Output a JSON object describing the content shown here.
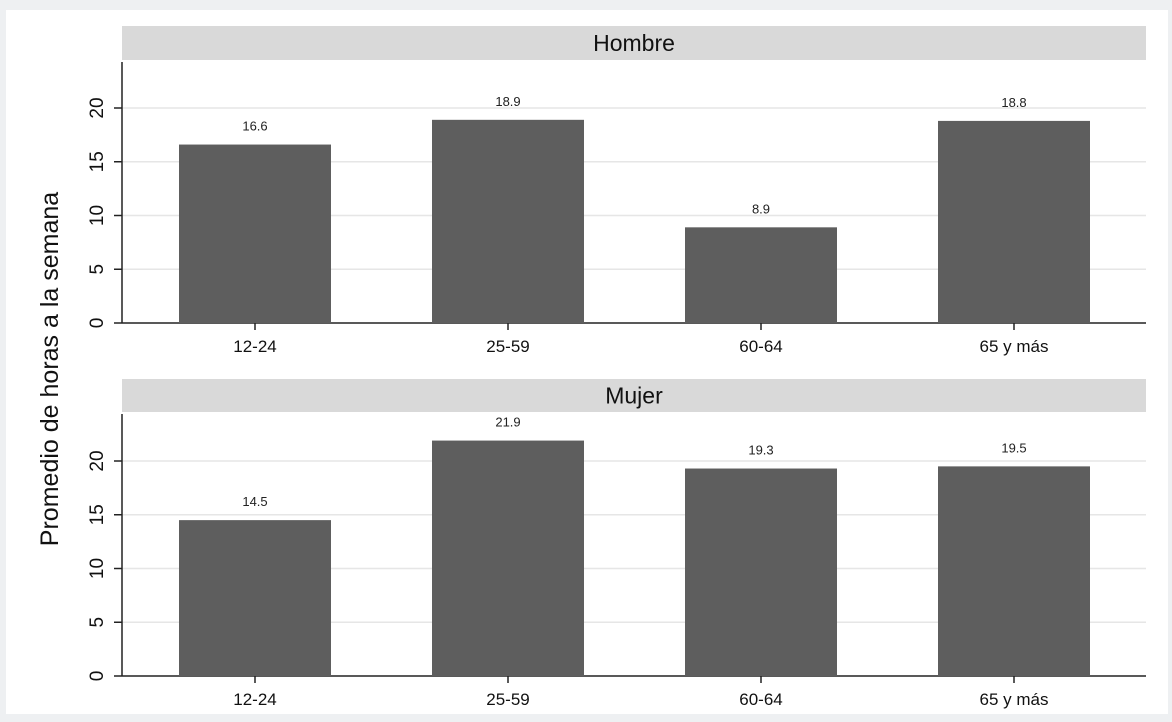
{
  "chart_data": {
    "type": "bar",
    "ylabel": "Promedio de horas a la semana",
    "categories": [
      "12-24",
      "25-59",
      "60-64",
      "65 y más"
    ],
    "ylim": [
      0,
      24
    ],
    "yticks": [
      0,
      5,
      10,
      15,
      20
    ],
    "grid": true,
    "bar_color": "#5e5e5e",
    "panels": [
      {
        "title": "Hombre",
        "values": [
          16.6,
          18.9,
          8.9,
          18.8
        ],
        "labels": [
          "16.6",
          "18.9",
          "8.9",
          "18.8"
        ]
      },
      {
        "title": "Mujer",
        "values": [
          14.5,
          21.9,
          19.3,
          19.5
        ],
        "labels": [
          "14.5",
          "21.9",
          "19.3",
          "19.5"
        ]
      }
    ]
  }
}
